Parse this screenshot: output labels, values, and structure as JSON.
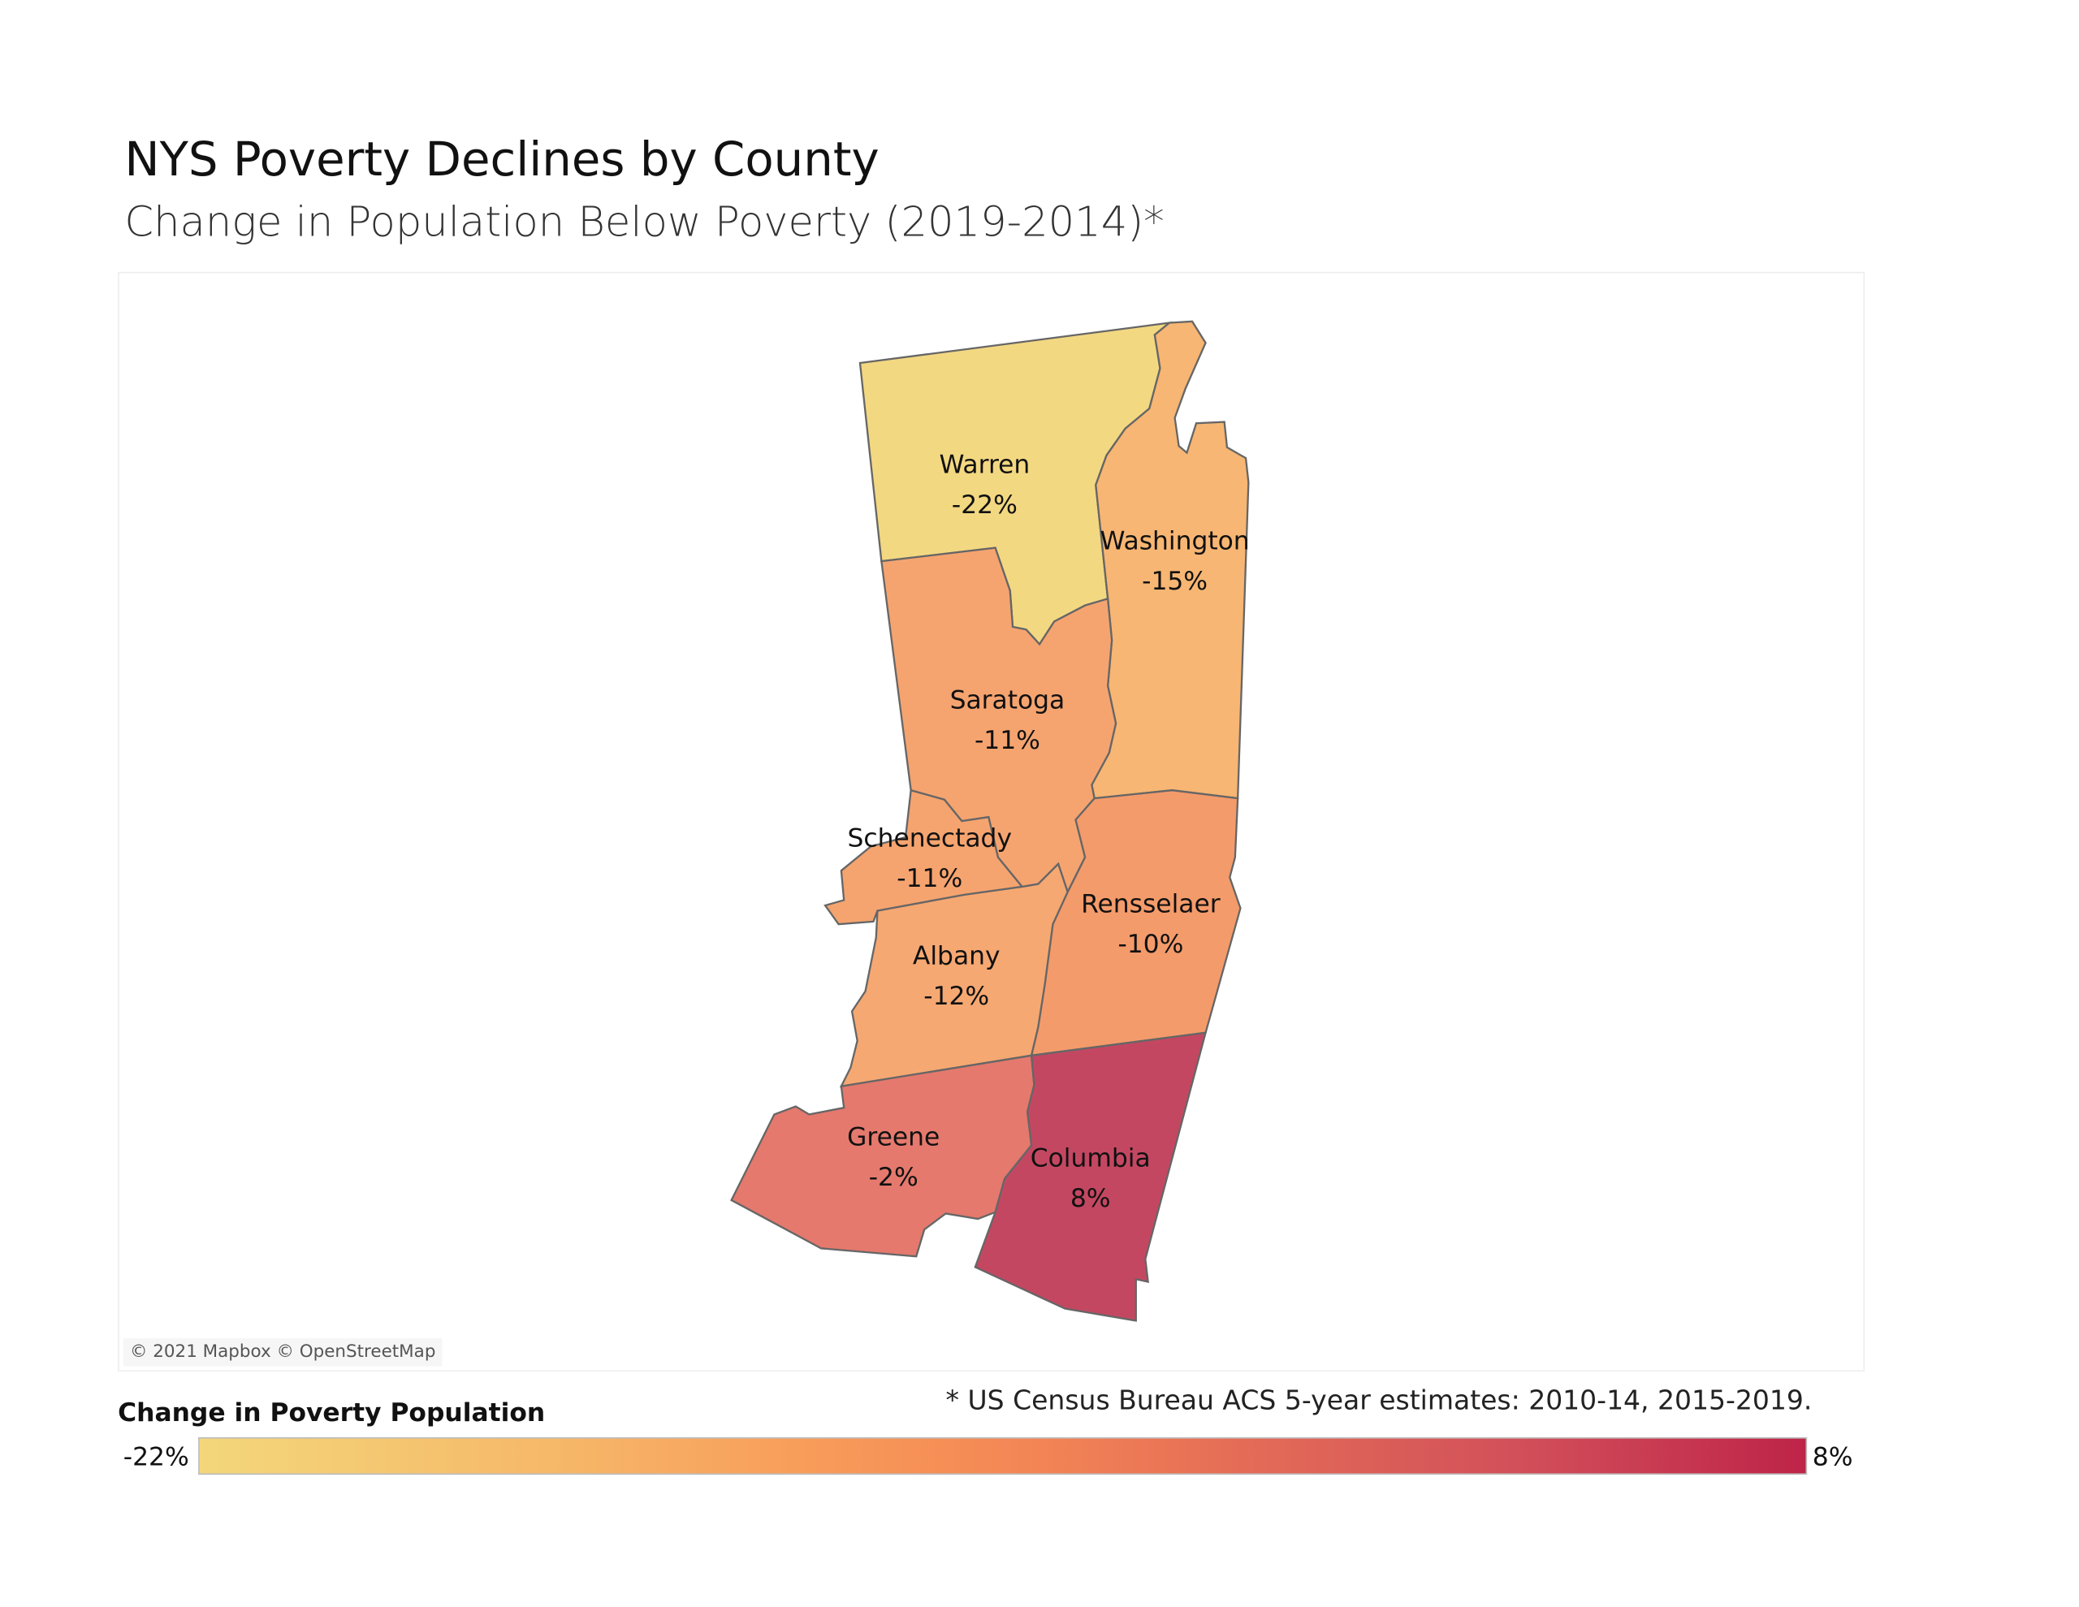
{
  "title": "NYS Poverty Declines by County",
  "subtitle": "Change in Population Below Poverty (2019-2014)*",
  "attribution": "© 2021 Mapbox © OpenStreetMap",
  "footnote": "* US Census Bureau ACS 5-year estimates: 2010-14, 2015-2019.",
  "legend": {
    "title": "Change in Poverty Population",
    "min_label": "-22%",
    "max_label": "8%",
    "min": -22,
    "max": 8
  },
  "counties": [
    {
      "name": "Warren",
      "value_label": "-22%",
      "value": -22,
      "color": "#f3d882"
    },
    {
      "name": "Washington",
      "value_label": "-15%",
      "value": -15,
      "color": "#f7b673"
    },
    {
      "name": "Saratoga",
      "value_label": "-11%",
      "value": -11,
      "color": "#f5a470"
    },
    {
      "name": "Schenectady",
      "value_label": "-11%",
      "value": -11,
      "color": "#f5a470"
    },
    {
      "name": "Albany",
      "value_label": "-12%",
      "value": -12,
      "color": "#f6a872"
    },
    {
      "name": "Rensselaer",
      "value_label": "-10%",
      "value": -10,
      "color": "#f49b6b"
    },
    {
      "name": "Greene",
      "value_label": "-2%",
      "value": -2,
      "color": "#e5796d"
    },
    {
      "name": "Columbia",
      "value_label": "8%",
      "value": 8,
      "color": "#c44762"
    }
  ]
}
